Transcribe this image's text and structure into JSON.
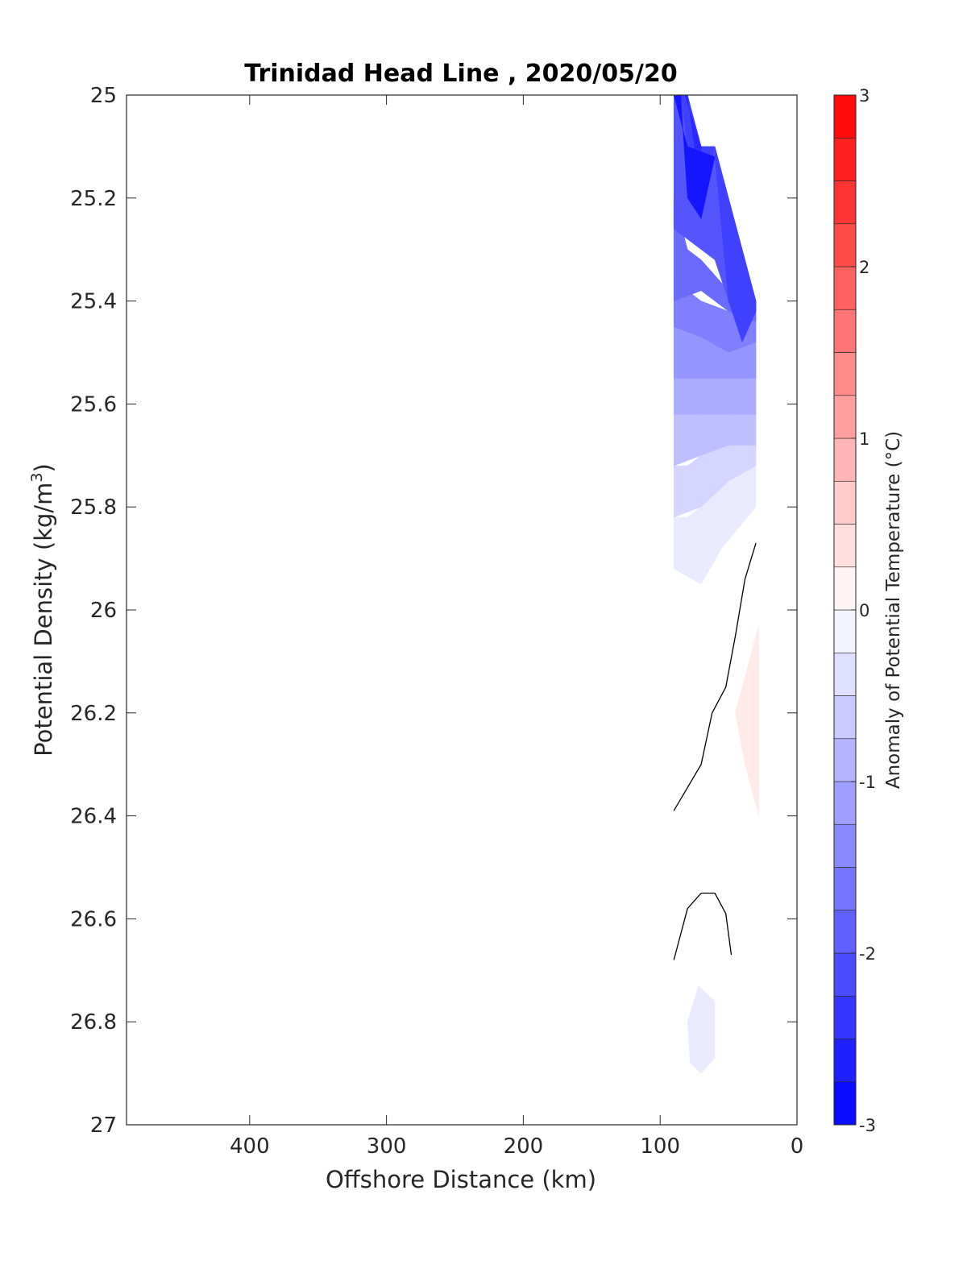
{
  "chart_data": {
    "type": "contour",
    "title": "Trinidad Head Line , 2020/05/20",
    "xlabel": "Offshore Distance (km)",
    "ylabel": "Potential Density (kg/m",
    "ylabel_sup": "3",
    "ylabel_close": ")",
    "xlim": [
      490,
      0
    ],
    "ylim": [
      25,
      27
    ],
    "y_reversed": true,
    "x_reversed": true,
    "xticks": [
      400,
      300,
      200,
      100,
      0
    ],
    "yticks": [
      25,
      25.2,
      25.4,
      25.6,
      25.8,
      26,
      26.2,
      26.4,
      26.6,
      26.8,
      27
    ],
    "grid": false,
    "colorbar": {
      "label": "Anomaly of Potential Temperature (°C)",
      "range": [
        -3,
        3
      ],
      "step": 0.25,
      "ticks": [
        3,
        2,
        1,
        0,
        -1,
        -2,
        -3
      ],
      "low_color": "#0000ff",
      "high_color": "#ff0000"
    },
    "filled_regions": [
      {
        "level": -2.75,
        "points": [
          [
            90,
            25.0
          ],
          [
            85,
            25.0
          ],
          [
            80,
            25.2
          ],
          [
            70,
            25.24
          ],
          [
            60,
            25.12
          ],
          [
            80,
            25.1
          ]
        ]
      },
      {
        "level": -2.5,
        "points": [
          [
            82,
            25.0
          ],
          [
            80,
            25.0
          ],
          [
            75,
            25.1
          ],
          [
            70,
            25.24
          ],
          [
            70,
            25.1
          ]
        ]
      },
      {
        "level": -2.25,
        "points": [
          [
            90,
            25.0
          ],
          [
            85,
            25.0
          ],
          [
            80,
            25.1
          ],
          [
            70,
            25.24
          ],
          [
            60,
            25.1
          ],
          [
            60,
            25.12
          ],
          [
            50,
            25.4
          ],
          [
            40,
            25.48
          ],
          [
            30,
            25.42
          ],
          [
            30,
            25.4
          ],
          [
            60,
            25.1
          ],
          [
            70,
            25.1
          ],
          [
            80,
            25.0
          ]
        ]
      },
      {
        "level": -2.0,
        "points": [
          [
            90,
            25.0
          ],
          [
            90,
            25.26
          ],
          [
            80,
            25.28
          ],
          [
            70,
            25.3
          ],
          [
            60,
            25.32
          ],
          [
            50,
            25.4
          ],
          [
            30,
            25.42
          ],
          [
            30,
            25.4
          ],
          [
            60,
            25.1
          ],
          [
            70,
            25.1
          ],
          [
            80,
            25.0
          ]
        ]
      },
      {
        "level": -1.75,
        "points": [
          [
            90,
            25.2
          ],
          [
            90,
            25.4
          ],
          [
            70,
            25.38
          ],
          [
            50,
            25.42
          ],
          [
            30,
            25.44
          ],
          [
            30,
            25.42
          ],
          [
            50,
            25.38
          ],
          [
            70,
            25.32
          ],
          [
            80,
            25.3
          ]
        ]
      },
      {
        "level": -1.5,
        "points": [
          [
            90,
            25.36
          ],
          [
            90,
            25.45
          ],
          [
            70,
            25.47
          ],
          [
            50,
            25.5
          ],
          [
            30,
            25.48
          ],
          [
            30,
            25.44
          ],
          [
            50,
            25.42
          ],
          [
            70,
            25.4
          ],
          [
            80,
            25.38
          ]
        ]
      },
      {
        "level": -1.25,
        "points": [
          [
            90,
            25.45
          ],
          [
            90,
            25.55
          ],
          [
            70,
            25.55
          ],
          [
            50,
            25.55
          ],
          [
            30,
            25.55
          ],
          [
            30,
            25.48
          ],
          [
            50,
            25.5
          ],
          [
            70,
            25.47
          ],
          [
            80,
            25.45
          ]
        ]
      },
      {
        "level": -1.0,
        "points": [
          [
            90,
            25.55
          ],
          [
            90,
            25.62
          ],
          [
            70,
            25.62
          ],
          [
            50,
            25.62
          ],
          [
            30,
            25.62
          ],
          [
            30,
            25.55
          ],
          [
            50,
            25.55
          ],
          [
            70,
            25.55
          ],
          [
            80,
            25.55
          ]
        ]
      },
      {
        "level": -0.75,
        "points": [
          [
            90,
            25.62
          ],
          [
            90,
            25.72
          ],
          [
            70,
            25.7
          ],
          [
            50,
            25.68
          ],
          [
            30,
            25.68
          ],
          [
            30,
            25.62
          ],
          [
            50,
            25.62
          ],
          [
            70,
            25.62
          ],
          [
            80,
            25.62
          ]
        ]
      },
      {
        "level": -0.5,
        "points": [
          [
            90,
            25.72
          ],
          [
            90,
            25.82
          ],
          [
            70,
            25.8
          ],
          [
            50,
            25.75
          ],
          [
            30,
            25.72
          ],
          [
            30,
            25.68
          ],
          [
            50,
            25.68
          ],
          [
            70,
            25.7
          ],
          [
            80,
            25.72
          ]
        ]
      },
      {
        "level": -0.25,
        "points": [
          [
            90,
            25.82
          ],
          [
            90,
            25.92
          ],
          [
            70,
            25.95
          ],
          [
            55,
            25.88
          ],
          [
            30,
            25.8
          ],
          [
            30,
            25.72
          ],
          [
            50,
            25.75
          ],
          [
            70,
            25.8
          ],
          [
            80,
            25.82
          ]
        ]
      },
      {
        "level": 0.25,
        "points": [
          [
            28,
            26.03
          ],
          [
            35,
            26.1
          ],
          [
            45,
            26.2
          ],
          [
            38,
            26.3
          ],
          [
            28,
            26.4
          ]
        ]
      },
      {
        "level": -0.25,
        "points": [
          [
            72,
            26.73
          ],
          [
            80,
            26.8
          ],
          [
            78,
            26.88
          ],
          [
            70,
            26.9
          ],
          [
            60,
            26.87
          ],
          [
            60,
            26.76
          ]
        ]
      }
    ],
    "contour_lines": [
      {
        "level": 0,
        "points": [
          [
            30,
            25.87
          ],
          [
            38,
            25.94
          ],
          [
            45,
            26.05
          ],
          [
            52,
            26.15
          ],
          [
            62,
            26.2
          ],
          [
            70,
            26.3
          ],
          [
            90,
            26.39
          ]
        ]
      },
      {
        "level": 0,
        "points": [
          [
            90,
            26.68
          ],
          [
            80,
            26.58
          ],
          [
            70,
            26.55
          ],
          [
            60,
            26.55
          ],
          [
            52,
            26.59
          ],
          [
            48,
            26.67
          ]
        ]
      }
    ]
  }
}
